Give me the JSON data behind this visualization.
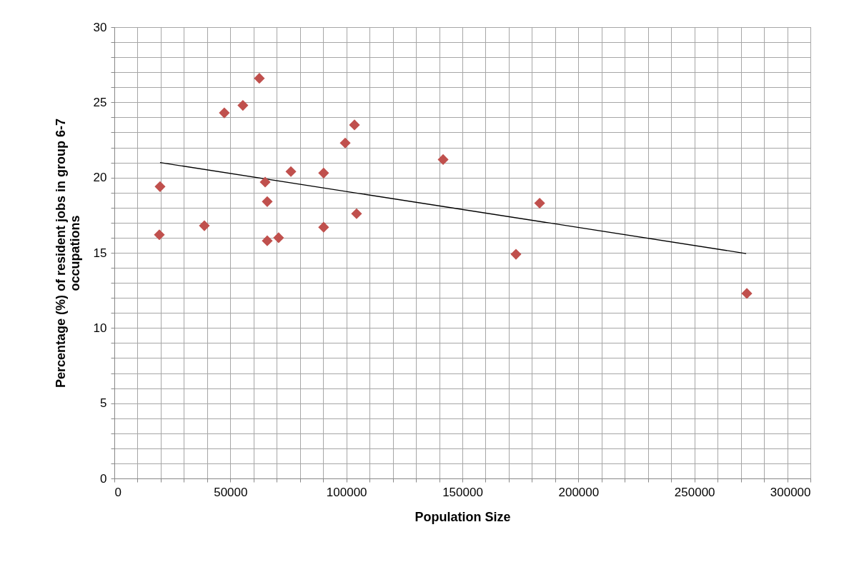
{
  "chart_data": {
    "type": "scatter",
    "xlabel": "Population Size",
    "ylabel": "Percentage (%) of resident jobs in group 6-7 occupations",
    "marker": "diamond",
    "grid": true,
    "xlim": [
      0,
      300000
    ],
    "ylim": [
      0,
      30
    ],
    "xticks": [
      0,
      {
        "value": 10000,
        "label": null
      },
      {
        "value": 20000,
        "label": null
      },
      {
        "value": 30000,
        "label": null
      },
      {
        "value": 40000,
        "label": null
      },
      50000,
      {
        "value": 60000,
        "label": null
      },
      {
        "value": 70000,
        "label": null
      },
      {
        "value": 80000,
        "label": null
      },
      {
        "value": 90000,
        "label": null
      },
      100000,
      {
        "value": 110000,
        "label": null
      },
      {
        "value": 120000,
        "label": null
      },
      {
        "value": 130000,
        "label": null
      },
      {
        "value": 140000,
        "label": null
      },
      150000,
      {
        "value": 160000,
        "label": null
      },
      {
        "value": 170000,
        "label": null
      },
      {
        "value": 180000,
        "label": null
      },
      {
        "value": 190000,
        "label": null
      },
      200000,
      {
        "value": 210000,
        "label": null
      },
      {
        "value": 220000,
        "label": null
      },
      {
        "value": 230000,
        "label": null
      },
      {
        "value": 240000,
        "label": null
      },
      250000,
      {
        "value": 260000,
        "label": null
      },
      {
        "value": 270000,
        "label": null
      },
      {
        "value": 280000,
        "label": null
      },
      {
        "value": 290000,
        "label": null
      },
      300000
    ],
    "yticks": [
      0,
      {
        "value": 1,
        "label": null
      },
      {
        "value": 2,
        "label": null
      },
      {
        "value": 3,
        "label": null
      },
      {
        "value": 4,
        "label": null
      },
      5,
      {
        "value": 6,
        "label": null
      },
      {
        "value": 7,
        "label": null
      },
      {
        "value": 8,
        "label": null
      },
      {
        "value": 9,
        "label": null
      },
      10,
      {
        "value": 11,
        "label": null
      },
      {
        "value": 12,
        "label": null
      },
      {
        "value": 13,
        "label": null
      },
      {
        "value": 14,
        "label": null
      },
      15,
      {
        "value": 16,
        "label": null
      },
      {
        "value": 17,
        "label": null
      },
      {
        "value": 18,
        "label": null
      },
      {
        "value": 19,
        "label": null
      },
      20,
      {
        "value": 21,
        "label": null
      },
      {
        "value": 22,
        "label": null
      },
      {
        "value": 23,
        "label": null
      },
      {
        "value": 24,
        "label": null
      },
      25,
      {
        "value": 26,
        "label": null
      },
      {
        "value": 27,
        "label": null
      },
      {
        "value": 28,
        "label": null
      },
      {
        "value": 29,
        "label": null
      },
      30
    ],
    "series": [
      {
        "color": "#c0504d",
        "x": [
          19700,
          19400,
          38800,
          47400,
          55400,
          62500,
          65000,
          65900,
          65900,
          70800,
          76100,
          90200,
          90200,
          99500,
          103500,
          104400,
          141700,
          173100,
          183300,
          272600
        ],
        "values": [
          19.4,
          16.2,
          16.8,
          24.3,
          24.8,
          26.6,
          19.7,
          18.4,
          15.8,
          16.0,
          20.4,
          20.3,
          16.7,
          22.3,
          23.5,
          17.6,
          21.2,
          14.9,
          18.3,
          12.3
        ]
      },
      {
        "type": "line",
        "marker": "none",
        "color": "#000000",
        "x": [
          19700,
          272300
        ],
        "values": [
          21.0,
          14.95
        ]
      }
    ]
  }
}
